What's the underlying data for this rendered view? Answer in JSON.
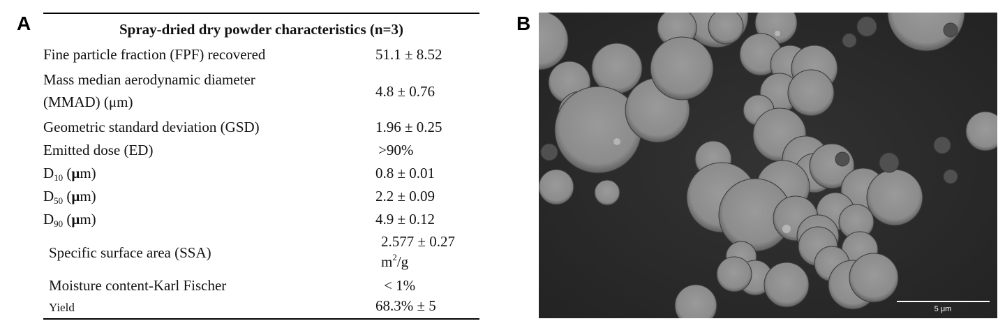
{
  "panel_a_label": "A",
  "panel_b_label": "B",
  "table": {
    "title": "Spray-dried dry powder characteristics (n=3)",
    "rows": [
      {
        "label": "Fine particle fraction (FPF) recovered",
        "value": "51.1 ± 8.52"
      },
      {
        "label_line1": "Mass median aerodynamic diameter",
        "label_line2": "(MMAD) (μm)",
        "value": "4.8 ± 0.76"
      },
      {
        "label": "Geometric standard deviation (GSD)",
        "value": "1.96 ± 0.25"
      },
      {
        "label": "Emitted dose (ED)",
        "value": ">90%"
      },
      {
        "label_main": "D",
        "label_sub": "10",
        "label_mu": "μ",
        "label_suffix": "m)",
        "value": "0.8 ± 0.01"
      },
      {
        "label_main": "D",
        "label_sub": "50",
        "label_mu": "μ",
        "label_suffix": "m)",
        "value": "2.2 ± 0.09"
      },
      {
        "label_main": "D",
        "label_sub": "90",
        "label_mu": "μ",
        "label_suffix": "m)",
        "value": "4.9 ± 0.12"
      },
      {
        "label": "Specific surface area (SSA)",
        "value_line1": "2.577 ± 0.27",
        "value_unit": "m",
        "value_sup": "2",
        "value_unit_suffix": "/g"
      },
      {
        "label": "Moisture content-Karl Fischer",
        "value": "< 1%"
      },
      {
        "label": "Yield",
        "value": "68.3%  ± 5"
      }
    ]
  },
  "micrograph": {
    "scale_bar_label": "5 μm",
    "background_color": "#2c2c2c",
    "particle_color": "#8f8f8f"
  }
}
